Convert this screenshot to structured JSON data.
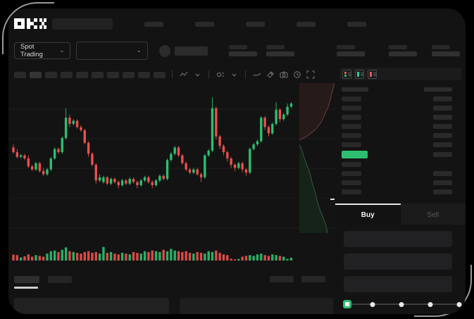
{
  "header": {
    "brand": "OKX"
  },
  "subheader": {
    "market_selector_label": "Spot Trading",
    "chevron": "⌄"
  },
  "chart_toolbar": {
    "icons": [
      "chart-type",
      "chevron-down",
      "indicators",
      "chevron-down",
      "line-tool",
      "measure-tool",
      "camera",
      "history-clock",
      "fullscreen"
    ]
  },
  "order_panel": {
    "view_icons": [
      "book-split-view",
      "book-bids-view",
      "book-asks-view"
    ],
    "tabs": {
      "buy_label": "Buy",
      "sell_label": "Sell"
    },
    "slider": {
      "stops": 5,
      "value_index": 0,
      "positions_pct": [
        0,
        25,
        50,
        75,
        100
      ]
    }
  },
  "colors": {
    "up": "#2EBD70",
    "down": "#E9504E",
    "accent_button": "#2EBD70",
    "price_highlight": "#2EBD70",
    "depth_ask_fill": "#271b1a",
    "depth_ask_line": "#63413f",
    "depth_bid_fill": "#162319",
    "depth_bid_line": "#35584a",
    "grid": "#1e1e1e"
  },
  "chart_data": {
    "type": "candlestick",
    "title": "",
    "xlabel": "",
    "ylabel": "",
    "note": "skeleton trading chart, no axis labels visible; prices normalized 0-100",
    "price_scale": {
      "min": 0,
      "max": 100
    },
    "grid": true,
    "candles": [
      [
        59,
        61,
        55,
        56
      ],
      [
        56,
        58,
        52,
        53
      ],
      [
        53,
        55,
        52,
        54
      ],
      [
        54,
        55,
        51,
        52
      ],
      [
        52,
        54,
        46,
        47
      ],
      [
        47,
        48,
        44,
        45
      ],
      [
        45,
        50,
        44,
        49
      ],
      [
        49,
        50,
        43,
        44
      ],
      [
        44,
        46,
        41,
        42
      ],
      [
        42,
        46,
        41,
        45
      ],
      [
        45,
        53,
        44,
        52
      ],
      [
        52,
        59,
        51,
        58
      ],
      [
        58,
        59,
        55,
        56
      ],
      [
        56,
        66,
        55,
        65
      ],
      [
        65,
        84,
        64,
        78
      ],
      [
        78,
        80,
        72,
        74
      ],
      [
        74,
        77,
        73,
        76
      ],
      [
        76,
        77,
        71,
        72
      ],
      [
        72,
        73,
        69,
        70
      ],
      [
        70,
        71,
        61,
        62
      ],
      [
        62,
        63,
        53,
        55
      ],
      [
        55,
        56,
        47,
        48
      ],
      [
        48,
        49,
        36,
        38
      ],
      [
        38,
        42,
        37,
        40
      ],
      [
        37,
        41,
        36,
        40
      ],
      [
        40,
        41,
        35,
        36
      ],
      [
        36,
        40,
        35,
        39
      ],
      [
        39,
        40,
        36,
        37
      ],
      [
        37,
        38,
        33,
        35
      ],
      [
        35,
        39,
        34,
        38
      ],
      [
        38,
        39,
        35,
        36
      ],
      [
        36,
        40,
        35,
        39
      ],
      [
        39,
        40,
        36,
        37
      ],
      [
        37,
        38,
        33,
        35
      ],
      [
        35,
        39,
        34,
        38
      ],
      [
        38,
        41,
        37,
        40
      ],
      [
        40,
        41,
        36,
        37
      ],
      [
        37,
        38,
        33,
        35
      ],
      [
        35,
        39,
        34,
        38
      ],
      [
        38,
        42,
        37,
        41
      ],
      [
        41,
        42,
        38,
        39
      ],
      [
        39,
        52,
        38,
        51
      ],
      [
        51,
        56,
        50,
        55
      ],
      [
        55,
        60,
        54,
        59
      ],
      [
        59,
        60,
        53,
        54
      ],
      [
        54,
        55,
        48,
        49
      ],
      [
        49,
        50,
        44,
        45
      ],
      [
        45,
        46,
        42,
        43
      ],
      [
        43,
        46,
        42,
        45
      ],
      [
        45,
        46,
        41,
        42
      ],
      [
        42,
        43,
        37,
        40
      ],
      [
        40,
        55,
        39,
        54
      ],
      [
        54,
        58,
        53,
        57
      ],
      [
        57,
        91,
        56,
        84
      ],
      [
        84,
        85,
        64,
        66
      ],
      [
        66,
        67,
        58,
        60
      ],
      [
        60,
        61,
        54,
        56
      ],
      [
        56,
        57,
        50,
        52
      ],
      [
        52,
        53,
        46,
        48
      ],
      [
        48,
        49,
        44,
        46
      ],
      [
        46,
        50,
        45,
        49
      ],
      [
        49,
        50,
        43,
        45
      ],
      [
        45,
        46,
        41,
        43
      ],
      [
        43,
        59,
        42,
        58
      ],
      [
        58,
        62,
        57,
        61
      ],
      [
        61,
        64,
        60,
        63
      ],
      [
        63,
        79,
        62,
        78
      ],
      [
        78,
        79,
        70,
        72
      ],
      [
        72,
        73,
        66,
        68
      ],
      [
        68,
        75,
        67,
        74
      ],
      [
        74,
        88,
        73,
        83
      ],
      [
        83,
        84,
        75,
        77
      ],
      [
        77,
        81,
        76,
        80
      ],
      [
        80,
        87,
        79,
        85
      ],
      [
        85,
        88,
        84,
        87
      ]
    ],
    "volume": [
      38,
      35,
      20,
      28,
      40,
      25,
      35,
      30,
      25,
      45,
      60,
      65,
      55,
      70,
      85,
      60,
      55,
      50,
      45,
      55,
      60,
      50,
      55,
      45,
      88,
      50,
      55,
      45,
      40,
      50,
      45,
      40,
      55,
      50,
      45,
      60,
      55,
      65,
      60,
      55,
      70,
      60,
      75,
      65,
      60,
      55,
      60,
      50,
      45,
      55,
      50,
      45,
      60,
      55,
      65,
      50,
      40,
      35,
      12,
      8,
      10,
      25,
      30,
      35,
      30,
      40,
      45,
      35,
      30,
      40,
      35,
      30,
      25,
      10,
      18
    ],
    "depth": {
      "orientation": "vertical",
      "asks_curve": [
        [
          1,
          0
        ],
        [
          0.93,
          0.06
        ],
        [
          0.88,
          0.11
        ],
        [
          0.82,
          0.16
        ],
        [
          0.72,
          0.21
        ],
        [
          0.62,
          0.26
        ],
        [
          0.5,
          0.3
        ],
        [
          0.35,
          0.33
        ],
        [
          0.18,
          0.36
        ],
        [
          0.04,
          0.375
        ],
        [
          0,
          0.38
        ]
      ],
      "bids_curve": [
        [
          0,
          0.41
        ],
        [
          0.08,
          0.45
        ],
        [
          0.14,
          0.5
        ],
        [
          0.22,
          0.55
        ],
        [
          0.3,
          0.6
        ],
        [
          0.36,
          0.66
        ],
        [
          0.44,
          0.72
        ],
        [
          0.5,
          0.78
        ],
        [
          0.58,
          0.84
        ],
        [
          0.68,
          0.9
        ],
        [
          0.76,
          0.95
        ],
        [
          0.8,
          1.0
        ]
      ],
      "price_marker_y": 0.77
    }
  }
}
